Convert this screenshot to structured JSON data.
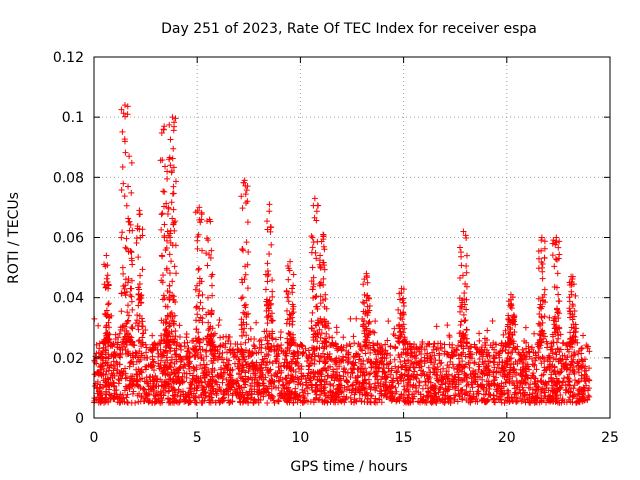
{
  "chart_data": {
    "type": "scatter",
    "title": "Day 251 of 2023, Rate Of TEC Index for receiver espa",
    "xlabel": "GPS time / hours",
    "ylabel": "ROTI / TECUs",
    "xlim": [
      0,
      25
    ],
    "ylim": [
      0,
      0.12
    ],
    "xticks": [
      0,
      5,
      10,
      15,
      20,
      25
    ],
    "xtick_labels": [
      "0",
      "5",
      "10",
      "15",
      "20",
      "25"
    ],
    "yticks": [
      0,
      0.02,
      0.04,
      0.06,
      0.08,
      0.1,
      0.12
    ],
    "ytick_labels": [
      "0",
      "0.02",
      "0.04",
      "0.06",
      "0.08",
      "0.1",
      "0.12"
    ],
    "grid": true,
    "marker": "+",
    "color": "#ff0000",
    "data_range_x": [
      0,
      24
    ],
    "baseline_band": [
      0.005,
      0.025
    ],
    "spikes": [
      {
        "x": 1.5,
        "y": 0.104
      },
      {
        "x": 1.7,
        "y": 0.087
      },
      {
        "x": 2.2,
        "y": 0.069
      },
      {
        "x": 3.4,
        "y": 0.097
      },
      {
        "x": 3.8,
        "y": 0.1
      },
      {
        "x": 3.7,
        "y": 0.084
      },
      {
        "x": 5.1,
        "y": 0.07
      },
      {
        "x": 5.6,
        "y": 0.066
      },
      {
        "x": 7.3,
        "y": 0.079
      },
      {
        "x": 8.5,
        "y": 0.071
      },
      {
        "x": 9.5,
        "y": 0.052
      },
      {
        "x": 10.7,
        "y": 0.073
      },
      {
        "x": 11.1,
        "y": 0.061
      },
      {
        "x": 13.2,
        "y": 0.048
      },
      {
        "x": 14.9,
        "y": 0.043
      },
      {
        "x": 17.9,
        "y": 0.062
      },
      {
        "x": 20.2,
        "y": 0.041
      },
      {
        "x": 21.7,
        "y": 0.06
      },
      {
        "x": 22.4,
        "y": 0.06
      },
      {
        "x": 23.2,
        "y": 0.047
      },
      {
        "x": 0.6,
        "y": 0.054
      }
    ]
  }
}
